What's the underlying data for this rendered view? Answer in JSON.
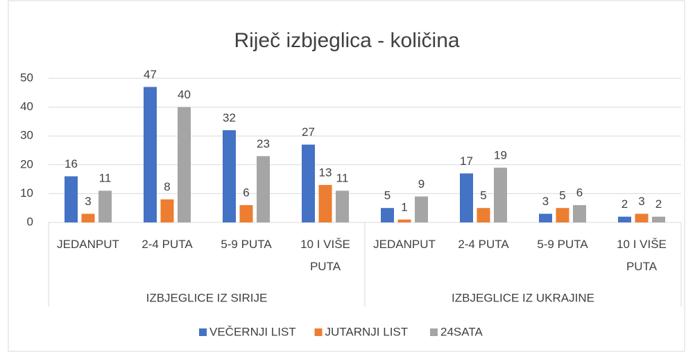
{
  "chart_data": {
    "type": "bar",
    "title": "Riječ izbjeglica - količina",
    "categories": [
      "JEDANPUT",
      "2-4 PUTA",
      "5-9 PUTA",
      "10 I VIŠE PUTA",
      "JEDANPUT",
      "2-4 PUTA",
      "5-9 PUTA",
      "10 I VIŠE PUTA"
    ],
    "category_groups": [
      "IZBJEGLICE IZ SIRIJE",
      "IZBJEGLICE IZ UKRAJINE"
    ],
    "series": [
      {
        "name": "VEČERNJI LIST",
        "color": "#4472c4",
        "values": [
          16,
          47,
          32,
          27,
          5,
          17,
          3,
          2
        ]
      },
      {
        "name": "JUTARNJI LIST",
        "color": "#ed7d31",
        "values": [
          3,
          8,
          6,
          13,
          1,
          5,
          5,
          3
        ]
      },
      {
        "name": "24SATA",
        "color": "#a5a5a5",
        "values": [
          11,
          40,
          23,
          11,
          9,
          19,
          6,
          2
        ]
      }
    ],
    "ylim": [
      0,
      50
    ],
    "yticks": [
      0,
      10,
      20,
      30,
      40,
      50
    ],
    "grid": true,
    "legend": "bottom"
  }
}
